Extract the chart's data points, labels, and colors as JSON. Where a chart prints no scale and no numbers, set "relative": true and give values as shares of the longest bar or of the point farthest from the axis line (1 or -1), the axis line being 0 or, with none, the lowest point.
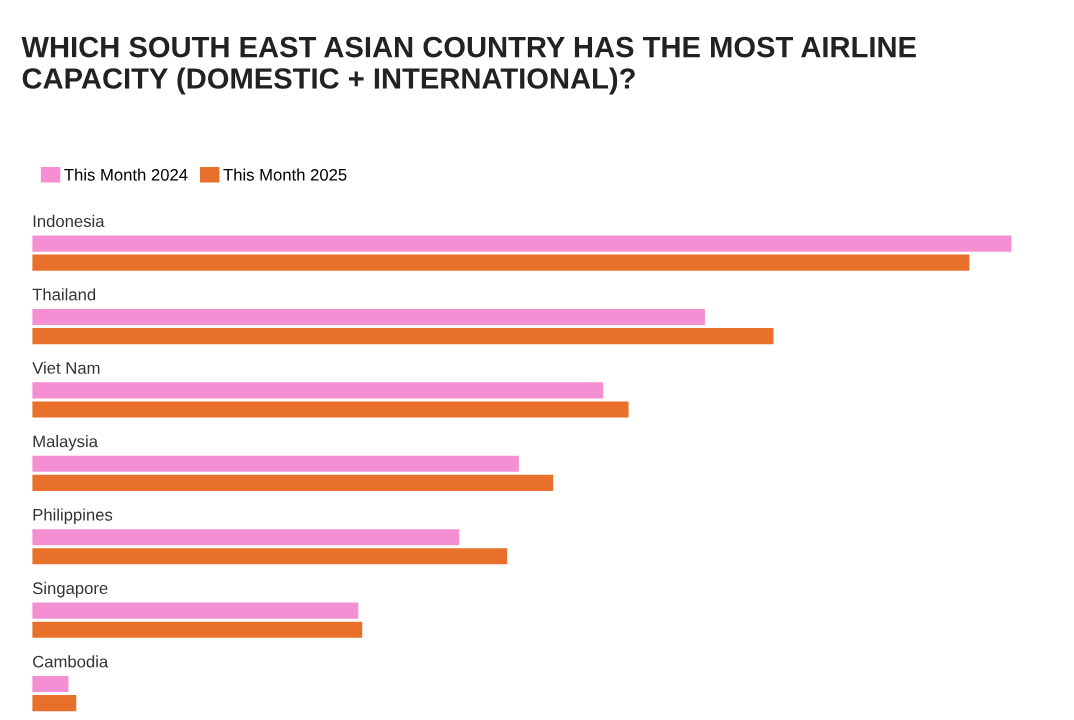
{
  "chart_data": {
    "type": "bar",
    "orientation": "horizontal",
    "relative": true,
    "title": "WHICH SOUTH EAST ASIAN COUNTRY HAS THE MOST AIRLINE CAPACITY (DOMESTIC + INTERNATIONAL)?",
    "categories": [
      "Indonesia",
      "Thailand",
      "Viet Nam",
      "Malaysia",
      "Philippines",
      "Singapore",
      "Cambodia"
    ],
    "series": [
      {
        "name": "This Month 2024",
        "color": "#f58fd3",
        "values": [
          1,
          0.687,
          0.583,
          0.497,
          0.436,
          0.333,
          0.037
        ]
      },
      {
        "name": "This Month 2025",
        "color": "#e8702a",
        "values": [
          0.957,
          0.757,
          0.609,
          0.532,
          0.485,
          0.337,
          0.045
        ]
      }
    ],
    "legend": "top left"
  }
}
